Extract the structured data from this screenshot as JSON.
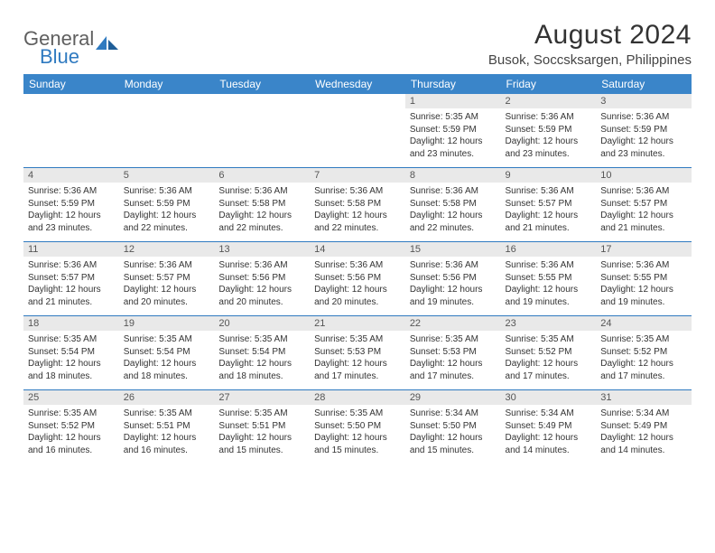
{
  "logo": {
    "word1": "General",
    "word2": "Blue",
    "gray": "#5f5f5f",
    "blue": "#2f7ac0"
  },
  "title": "August 2024",
  "location": "Busok, Soccsksargen, Philippines",
  "header_bg": "#3a85c9",
  "daynum_bg": "#e9e9e9",
  "rule_color": "#2f7ac0",
  "weekdays": [
    "Sunday",
    "Monday",
    "Tuesday",
    "Wednesday",
    "Thursday",
    "Friday",
    "Saturday"
  ],
  "weeks": [
    {
      "days": [
        null,
        null,
        null,
        null,
        {
          "n": "1",
          "sr": "5:35 AM",
          "ss": "5:59 PM",
          "dl": "12 hours and 23 minutes."
        },
        {
          "n": "2",
          "sr": "5:36 AM",
          "ss": "5:59 PM",
          "dl": "12 hours and 23 minutes."
        },
        {
          "n": "3",
          "sr": "5:36 AM",
          "ss": "5:59 PM",
          "dl": "12 hours and 23 minutes."
        }
      ]
    },
    {
      "days": [
        {
          "n": "4",
          "sr": "5:36 AM",
          "ss": "5:59 PM",
          "dl": "12 hours and 23 minutes."
        },
        {
          "n": "5",
          "sr": "5:36 AM",
          "ss": "5:59 PM",
          "dl": "12 hours and 22 minutes."
        },
        {
          "n": "6",
          "sr": "5:36 AM",
          "ss": "5:58 PM",
          "dl": "12 hours and 22 minutes."
        },
        {
          "n": "7",
          "sr": "5:36 AM",
          "ss": "5:58 PM",
          "dl": "12 hours and 22 minutes."
        },
        {
          "n": "8",
          "sr": "5:36 AM",
          "ss": "5:58 PM",
          "dl": "12 hours and 22 minutes."
        },
        {
          "n": "9",
          "sr": "5:36 AM",
          "ss": "5:57 PM",
          "dl": "12 hours and 21 minutes."
        },
        {
          "n": "10",
          "sr": "5:36 AM",
          "ss": "5:57 PM",
          "dl": "12 hours and 21 minutes."
        }
      ]
    },
    {
      "days": [
        {
          "n": "11",
          "sr": "5:36 AM",
          "ss": "5:57 PM",
          "dl": "12 hours and 21 minutes."
        },
        {
          "n": "12",
          "sr": "5:36 AM",
          "ss": "5:57 PM",
          "dl": "12 hours and 20 minutes."
        },
        {
          "n": "13",
          "sr": "5:36 AM",
          "ss": "5:56 PM",
          "dl": "12 hours and 20 minutes."
        },
        {
          "n": "14",
          "sr": "5:36 AM",
          "ss": "5:56 PM",
          "dl": "12 hours and 20 minutes."
        },
        {
          "n": "15",
          "sr": "5:36 AM",
          "ss": "5:56 PM",
          "dl": "12 hours and 19 minutes."
        },
        {
          "n": "16",
          "sr": "5:36 AM",
          "ss": "5:55 PM",
          "dl": "12 hours and 19 minutes."
        },
        {
          "n": "17",
          "sr": "5:36 AM",
          "ss": "5:55 PM",
          "dl": "12 hours and 19 minutes."
        }
      ]
    },
    {
      "days": [
        {
          "n": "18",
          "sr": "5:35 AM",
          "ss": "5:54 PM",
          "dl": "12 hours and 18 minutes."
        },
        {
          "n": "19",
          "sr": "5:35 AM",
          "ss": "5:54 PM",
          "dl": "12 hours and 18 minutes."
        },
        {
          "n": "20",
          "sr": "5:35 AM",
          "ss": "5:54 PM",
          "dl": "12 hours and 18 minutes."
        },
        {
          "n": "21",
          "sr": "5:35 AM",
          "ss": "5:53 PM",
          "dl": "12 hours and 17 minutes."
        },
        {
          "n": "22",
          "sr": "5:35 AM",
          "ss": "5:53 PM",
          "dl": "12 hours and 17 minutes."
        },
        {
          "n": "23",
          "sr": "5:35 AM",
          "ss": "5:52 PM",
          "dl": "12 hours and 17 minutes."
        },
        {
          "n": "24",
          "sr": "5:35 AM",
          "ss": "5:52 PM",
          "dl": "12 hours and 17 minutes."
        }
      ]
    },
    {
      "days": [
        {
          "n": "25",
          "sr": "5:35 AM",
          "ss": "5:52 PM",
          "dl": "12 hours and 16 minutes."
        },
        {
          "n": "26",
          "sr": "5:35 AM",
          "ss": "5:51 PM",
          "dl": "12 hours and 16 minutes."
        },
        {
          "n": "27",
          "sr": "5:35 AM",
          "ss": "5:51 PM",
          "dl": "12 hours and 15 minutes."
        },
        {
          "n": "28",
          "sr": "5:35 AM",
          "ss": "5:50 PM",
          "dl": "12 hours and 15 minutes."
        },
        {
          "n": "29",
          "sr": "5:34 AM",
          "ss": "5:50 PM",
          "dl": "12 hours and 15 minutes."
        },
        {
          "n": "30",
          "sr": "5:34 AM",
          "ss": "5:49 PM",
          "dl": "12 hours and 14 minutes."
        },
        {
          "n": "31",
          "sr": "5:34 AM",
          "ss": "5:49 PM",
          "dl": "12 hours and 14 minutes."
        }
      ]
    }
  ],
  "labels": {
    "sunrise": "Sunrise:",
    "sunset": "Sunset:",
    "daylight": "Daylight:"
  }
}
